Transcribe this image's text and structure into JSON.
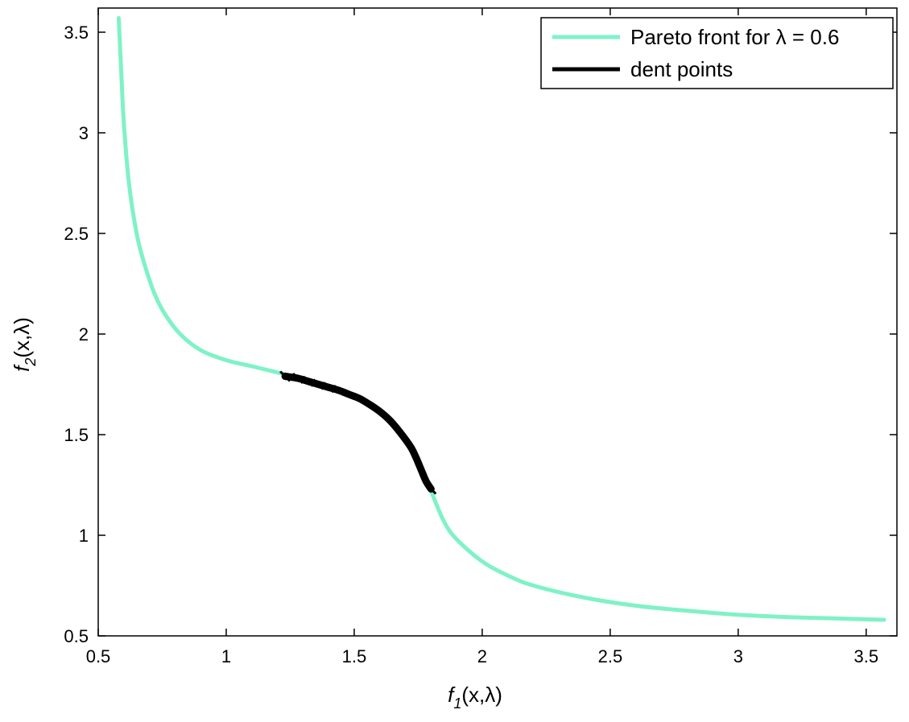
{
  "chart_data": {
    "type": "line",
    "title": "",
    "xlabel": "f_1(x,λ)",
    "ylabel": "f_2(x,λ)",
    "xlabel_parts": {
      "main": "f",
      "sub": "1",
      "rest": "(x,λ)"
    },
    "ylabel_parts": {
      "main": "f",
      "sub": "2",
      "rest": "(x,λ)"
    },
    "xlim": [
      0.5,
      3.62
    ],
    "ylim": [
      0.5,
      3.62
    ],
    "xticks": [
      0.5,
      1,
      1.5,
      2,
      2.5,
      3,
      3.5
    ],
    "xtick_labels": [
      "0.5",
      "1",
      "1.5",
      "2",
      "2.5",
      "3",
      "3.5"
    ],
    "yticks": [
      0.5,
      1,
      1.5,
      2,
      2.5,
      3,
      3.5
    ],
    "ytick_labels": [
      "0.5",
      "1",
      "1.5",
      "2",
      "2.5",
      "3",
      "3.5"
    ],
    "grid": false,
    "legend": {
      "position": "top-right",
      "entries": [
        {
          "label": "Pareto front for λ = 0.6",
          "color": "#7ff2c7"
        },
        {
          "label": "dent points",
          "color": "#000000"
        }
      ]
    },
    "series": [
      {
        "name": "Pareto front for λ = 0.6",
        "color": "#7ff2c7",
        "x": [
          0.58,
          0.59,
          0.6,
          0.62,
          0.65,
          0.68,
          0.72,
          0.76,
          0.82,
          0.9,
          1.0,
          1.1,
          1.23
        ],
        "y": [
          3.57,
          3.3,
          3.05,
          2.75,
          2.5,
          2.35,
          2.2,
          2.1,
          2.0,
          1.92,
          1.87,
          1.84,
          1.8
        ]
      },
      {
        "name": "Pareto front for λ = 0.6",
        "color": "#7ff2c7",
        "x": [
          1.8,
          1.85,
          1.9,
          2.0,
          2.1,
          2.2,
          2.4,
          2.6,
          2.8,
          3.0,
          3.2,
          3.4,
          3.57
        ],
        "y": [
          1.22,
          1.07,
          0.98,
          0.87,
          0.8,
          0.75,
          0.69,
          0.65,
          0.625,
          0.605,
          0.593,
          0.586,
          0.58
        ]
      },
      {
        "name": "dent points",
        "color": "#000000",
        "x": [
          1.23,
          1.28,
          1.32,
          1.36,
          1.4,
          1.44,
          1.48,
          1.52,
          1.56,
          1.6,
          1.64,
          1.68,
          1.72,
          1.74,
          1.76,
          1.78,
          1.8
        ],
        "y": [
          1.79,
          1.78,
          1.765,
          1.75,
          1.735,
          1.72,
          1.7,
          1.68,
          1.65,
          1.615,
          1.57,
          1.51,
          1.44,
          1.39,
          1.33,
          1.27,
          1.23
        ]
      }
    ]
  }
}
